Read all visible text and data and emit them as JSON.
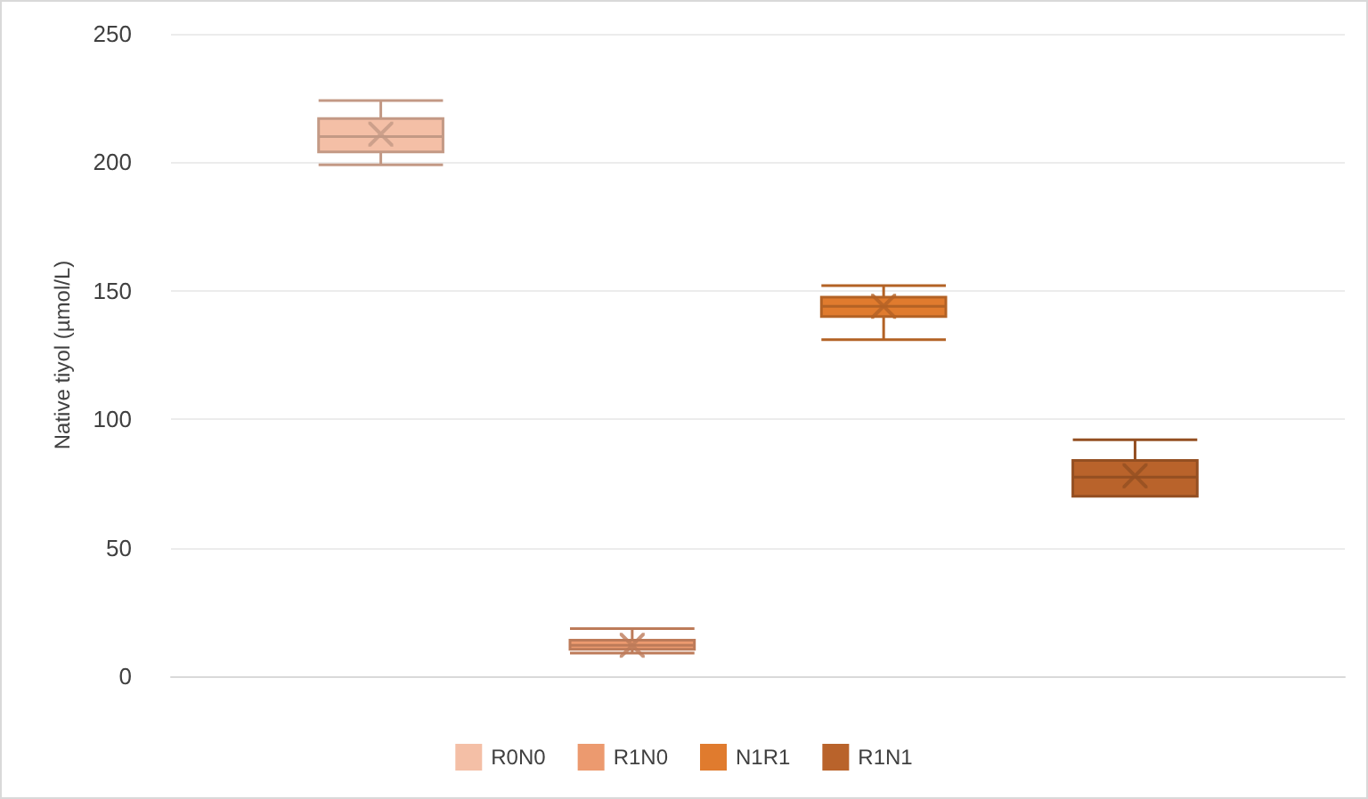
{
  "chart_data": {
    "type": "box",
    "ylabel": "Native tiyol (µmol/L)",
    "categories": [
      null
    ],
    "series": [
      {
        "name": "R0N0",
        "color": "#f4bfa6",
        "boxes": [
          {
            "low": 199,
            "q1": 204,
            "median": 210,
            "q3": 217,
            "high": 224,
            "mean": 211
          }
        ]
      },
      {
        "name": "R1N0",
        "color": "#ec9a6f",
        "boxes": [
          {
            "low": 9,
            "q1": 10.5,
            "median": 12,
            "q3": 14,
            "high": 18.5,
            "mean": 12
          }
        ]
      },
      {
        "name": "N1R1",
        "color": "#e07b2e",
        "boxes": [
          {
            "low": 131,
            "q1": 140,
            "median": 144,
            "q3": 147.5,
            "high": 152,
            "mean": 144
          }
        ]
      },
      {
        "name": "R1N1",
        "color": "#b9632b",
        "boxes": [
          {
            "low": 70,
            "q1": 70,
            "median": 77.5,
            "q3": 84,
            "high": 92,
            "mean": 78
          }
        ]
      }
    ],
    "ylim": [
      0,
      250
    ],
    "yticks": [
      0,
      50,
      100,
      150,
      200,
      250
    ],
    "grid": "y",
    "legend": "bottom"
  }
}
